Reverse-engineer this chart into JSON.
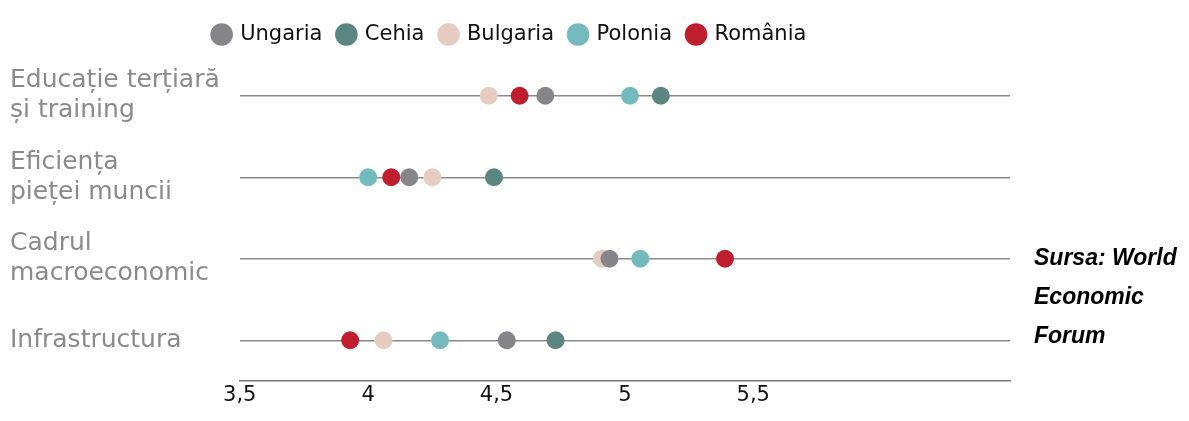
{
  "chart_data": {
    "type": "scatter",
    "orientation": "horizontal",
    "categories": [
      "Educație terțiară și training",
      "Eficiența pieței muncii",
      "Cadrul macroeconomic",
      "Infrastructura"
    ],
    "series": [
      {
        "name": "Ungaria",
        "color": "#86868a",
        "values": [
          4.69,
          4.16,
          4.94,
          4.54
        ]
      },
      {
        "name": "Cehia",
        "color": "#5a8580",
        "values": [
          5.14,
          4.49,
          null,
          4.73
        ]
      },
      {
        "name": "Bulgaria",
        "color": "#e5cbc0",
        "values": [
          4.47,
          4.25,
          4.91,
          4.06
        ]
      },
      {
        "name": "Polonia",
        "color": "#74b9bd",
        "values": [
          5.02,
          4.0,
          5.06,
          4.28
        ]
      },
      {
        "name": "România",
        "color": "#be1e2d",
        "values": [
          4.59,
          4.09,
          5.39,
          3.93
        ]
      }
    ],
    "xlim": [
      3.5,
      6.5
    ],
    "xticks": [
      {
        "value": 3.5,
        "label": "3,5"
      },
      4,
      {
        "value": 4.5,
        "label": "4,5"
      },
      5,
      {
        "value": 5.5,
        "label": "5,5"
      }
    ],
    "grid": "y",
    "legend": "top",
    "marker": "circle",
    "annotations": [
      "Sursa: World Economic Forum"
    ]
  }
}
